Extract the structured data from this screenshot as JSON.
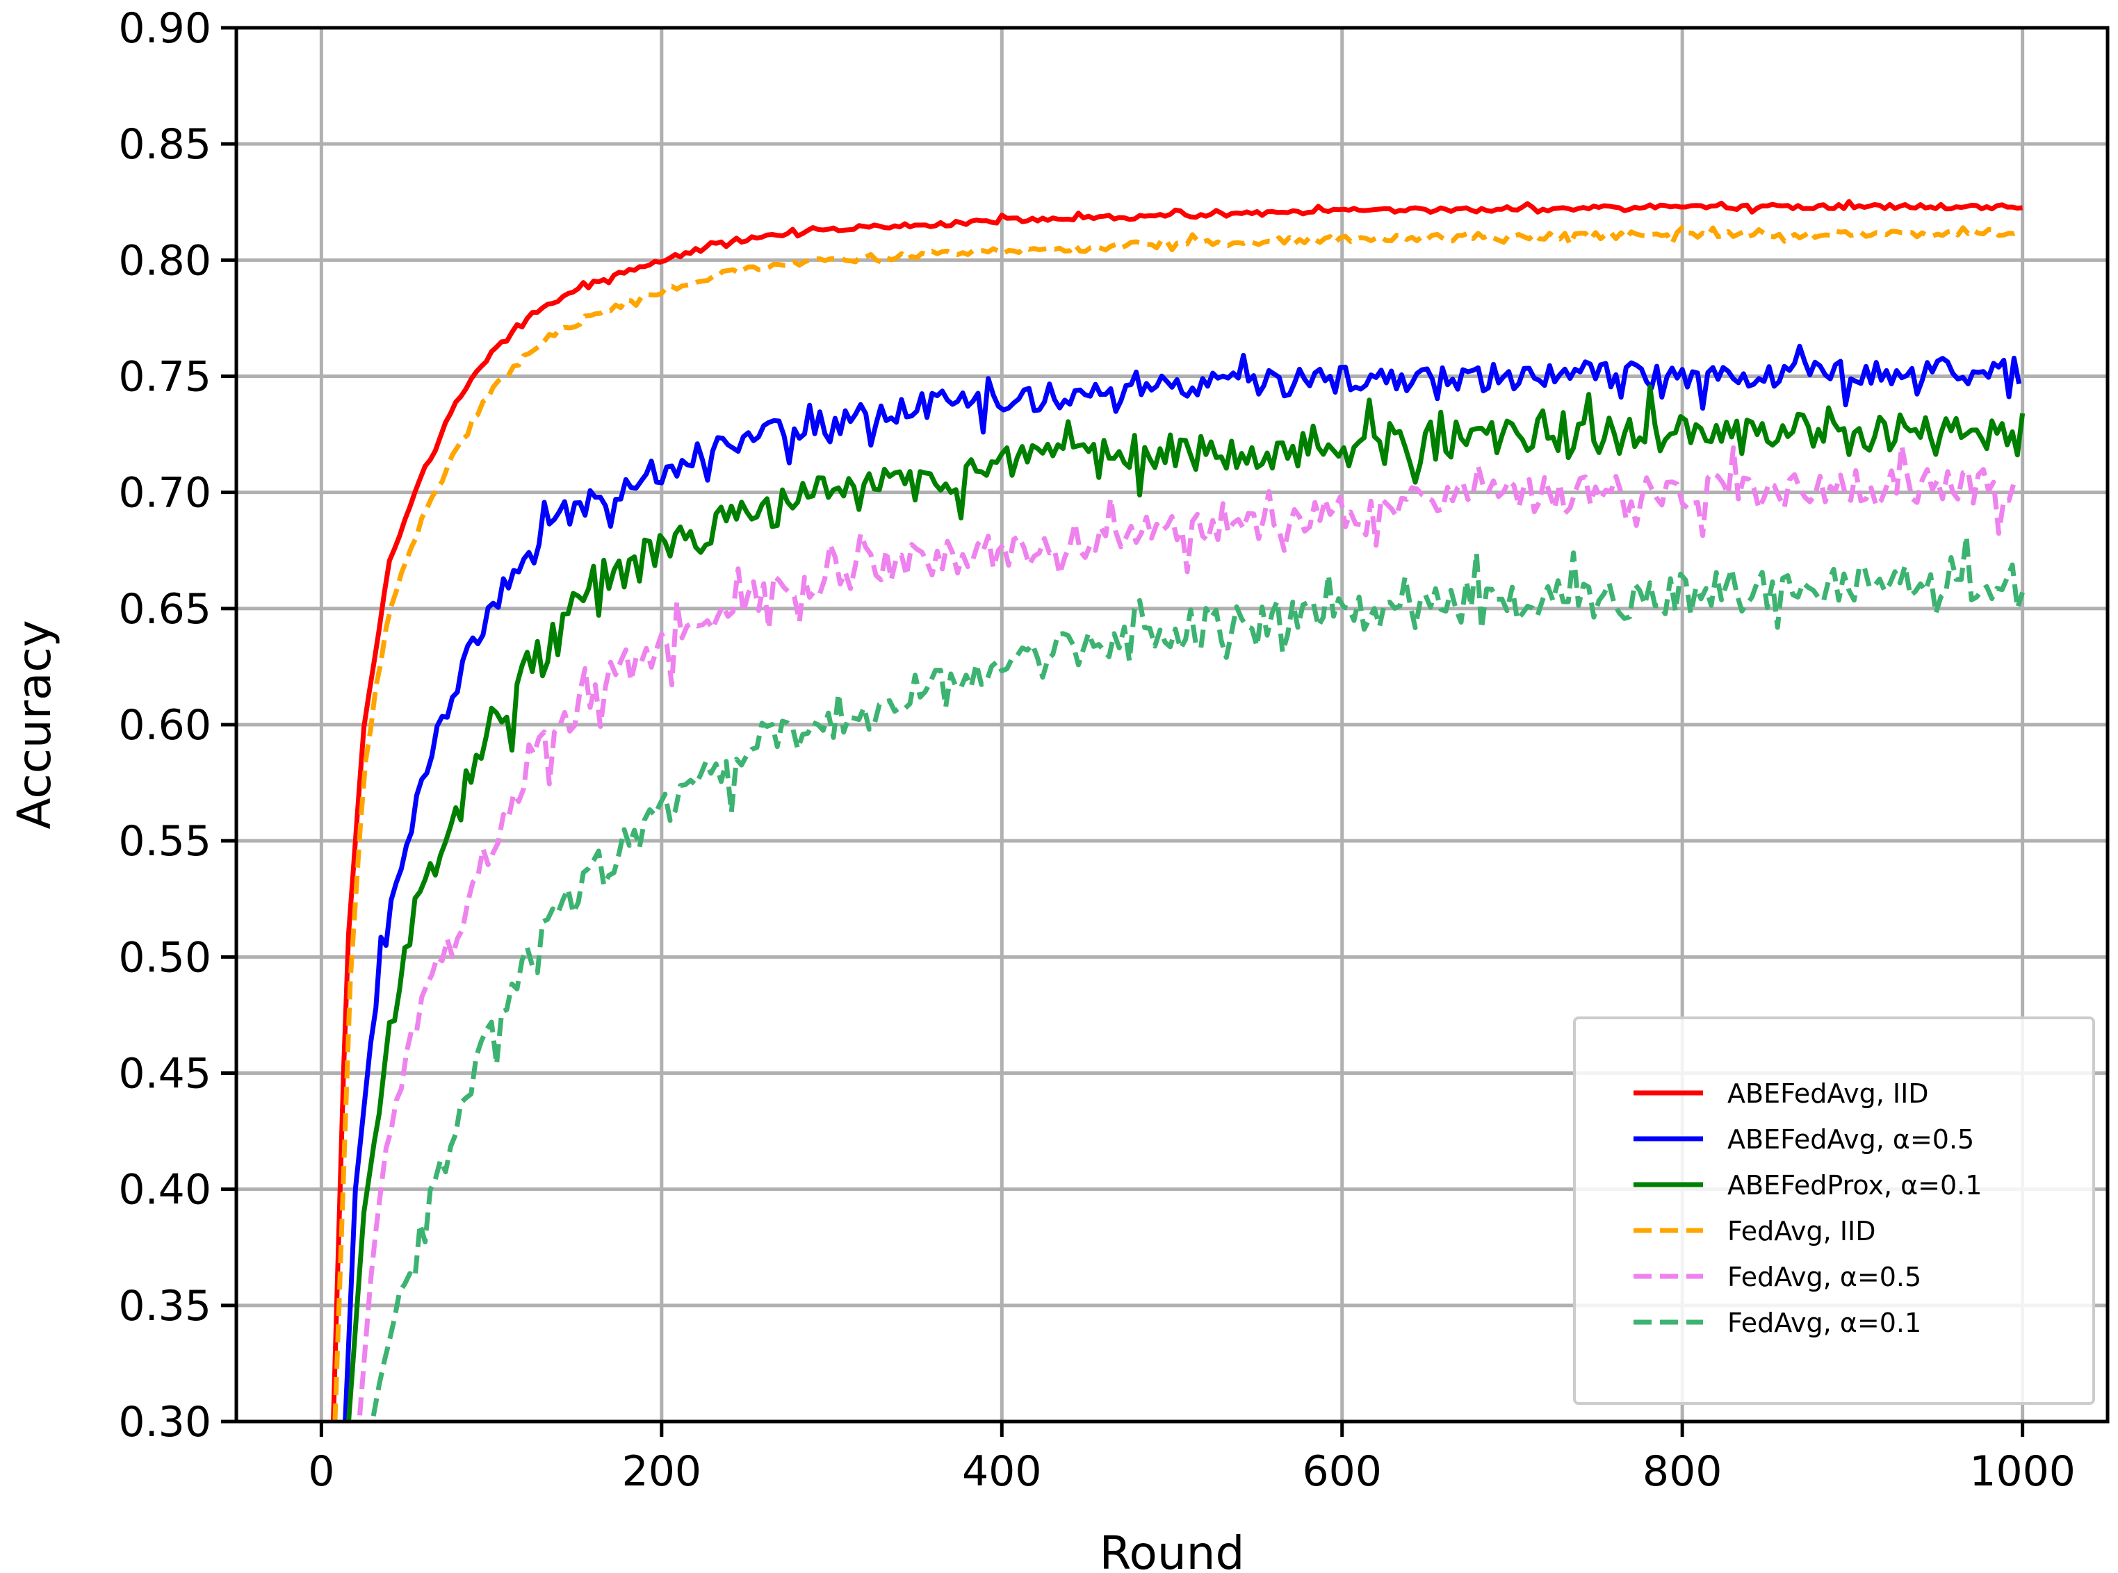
{
  "chart_data": {
    "type": "line",
    "xlabel": "Round",
    "ylabel": "Accuracy",
    "xlim": [
      -50,
      1050
    ],
    "ylim": [
      0.3,
      0.9
    ],
    "xticks": [
      0,
      200,
      400,
      600,
      800,
      1000
    ],
    "yticks": [
      0.3,
      0.35,
      0.4,
      0.45,
      0.5,
      0.55,
      0.6,
      0.65,
      0.7,
      0.75,
      0.8,
      0.85,
      0.9
    ],
    "grid": true,
    "legend_position": "lower-right",
    "series": [
      {
        "name": "ABEFedAvg, IID",
        "color": "#ff0000",
        "style": "solid",
        "x": [
          7,
          15,
          25,
          40,
          60,
          80,
          100,
          130,
          160,
          200,
          240,
          300,
          400,
          500,
          600,
          700,
          800,
          900,
          1000
        ],
        "y": [
          0.3,
          0.5,
          0.6,
          0.67,
          0.71,
          0.74,
          0.76,
          0.78,
          0.79,
          0.8,
          0.808,
          0.813,
          0.817,
          0.819,
          0.821,
          0.822,
          0.823,
          0.823,
          0.823
        ],
        "noise": 0.001
      },
      {
        "name": "ABEFedAvg, α=0.5",
        "color": "#0000ff",
        "style": "solid",
        "x": [
          14,
          20,
          30,
          40,
          50,
          60,
          80,
          100,
          120,
          140,
          170,
          200,
          250,
          300,
          350,
          400,
          500,
          600,
          700,
          800,
          900,
          1000
        ],
        "y": [
          0.3,
          0.4,
          0.47,
          0.52,
          0.55,
          0.58,
          0.62,
          0.65,
          0.67,
          0.69,
          0.7,
          0.71,
          0.725,
          0.73,
          0.737,
          0.74,
          0.745,
          0.748,
          0.75,
          0.751,
          0.752,
          0.752
        ],
        "noise": 0.006
      },
      {
        "name": "ABEFedProx, α=0.1",
        "color": "#008000",
        "style": "solid",
        "x": [
          16,
          25,
          35,
          45,
          60,
          80,
          100,
          130,
          160,
          200,
          250,
          300,
          400,
          500,
          600,
          700,
          800,
          900,
          1000
        ],
        "y": [
          0.3,
          0.39,
          0.44,
          0.49,
          0.53,
          0.57,
          0.6,
          0.63,
          0.66,
          0.675,
          0.69,
          0.7,
          0.71,
          0.718,
          0.72,
          0.723,
          0.725,
          0.725,
          0.724
        ],
        "noise": 0.009
      },
      {
        "name": "FedAvg, IID",
        "color": "#ffa500",
        "style": "dashed",
        "x": [
          8,
          17,
          25,
          40,
          60,
          80,
          100,
          130,
          160,
          200,
          240,
          300,
          400,
          500,
          600,
          700,
          800,
          900,
          1000
        ],
        "y": [
          0.3,
          0.49,
          0.58,
          0.65,
          0.69,
          0.72,
          0.745,
          0.765,
          0.777,
          0.787,
          0.795,
          0.8,
          0.804,
          0.807,
          0.809,
          0.81,
          0.811,
          0.811,
          0.812
        ],
        "noise": 0.0015
      },
      {
        "name": "FedAvg, α=0.5",
        "color": "#ee82ee",
        "style": "dashed",
        "x": [
          20,
          30,
          40,
          50,
          60,
          80,
          100,
          130,
          160,
          200,
          250,
          300,
          350,
          400,
          500,
          600,
          700,
          800,
          900,
          1000
        ],
        "y": [
          0.28,
          0.37,
          0.43,
          0.46,
          0.48,
          0.51,
          0.55,
          0.59,
          0.615,
          0.635,
          0.655,
          0.665,
          0.67,
          0.675,
          0.685,
          0.693,
          0.698,
          0.7,
          0.702,
          0.703
        ],
        "noise": 0.008
      },
      {
        "name": "FedAvg, α=0.1",
        "color": "#3cb371",
        "style": "dashed",
        "x": [
          25,
          35,
          45,
          60,
          80,
          100,
          130,
          160,
          200,
          250,
          300,
          350,
          400,
          500,
          600,
          700,
          800,
          900,
          1000
        ],
        "y": [
          0.28,
          0.32,
          0.35,
          0.38,
          0.43,
          0.47,
          0.51,
          0.535,
          0.565,
          0.59,
          0.6,
          0.615,
          0.625,
          0.64,
          0.648,
          0.652,
          0.656,
          0.66,
          0.662
        ],
        "noise": 0.009
      }
    ]
  }
}
